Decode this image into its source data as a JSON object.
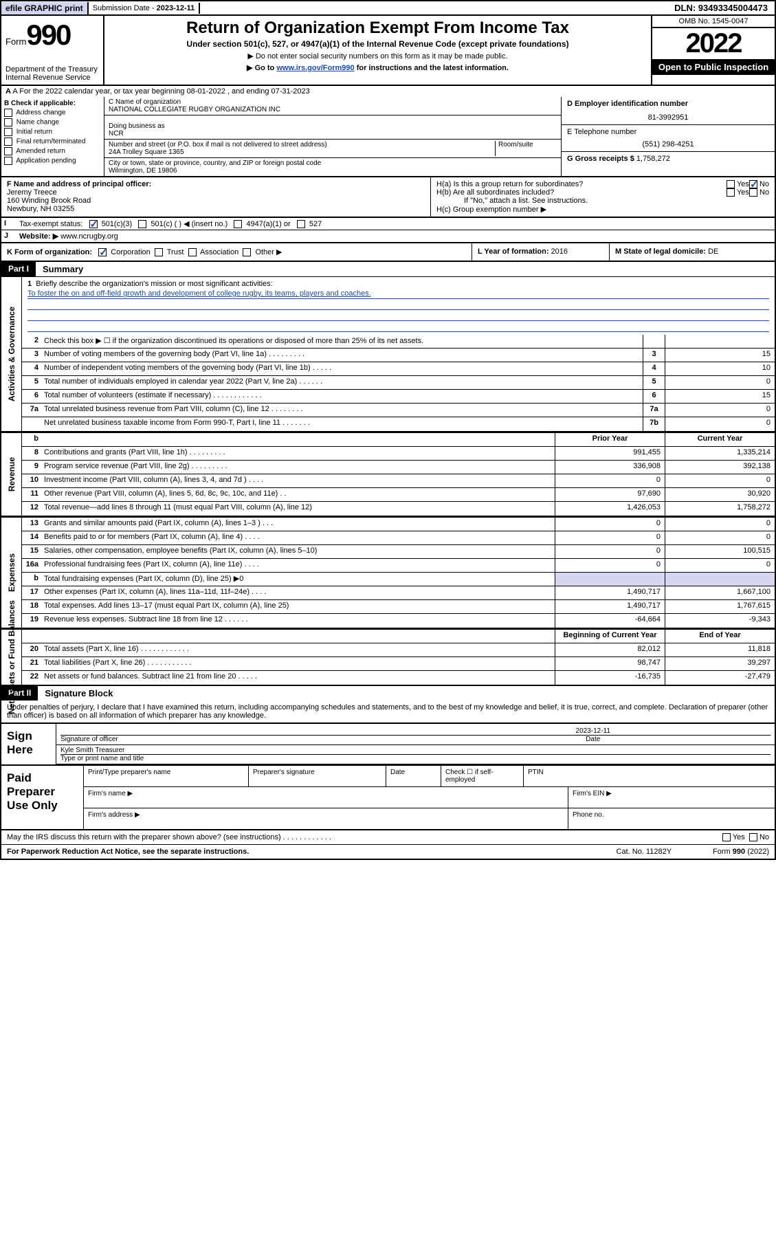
{
  "header": {
    "efile": "efile GRAPHIC print",
    "submission_label": "Submission Date - ",
    "submission_date": "2023-12-11",
    "dln": "DLN: 93493345004473"
  },
  "top": {
    "form_label": "Form",
    "form_num": "990",
    "dept": "Department of the Treasury",
    "irs": "Internal Revenue Service",
    "title": "Return of Organization Exempt From Income Tax",
    "subtitle": "Under section 501(c), 527, or 4947(a)(1) of the Internal Revenue Code (except private foundations)",
    "note1": "▶ Do not enter social security numbers on this form as it may be made public.",
    "note2_pre": "▶ Go to ",
    "note2_link": "www.irs.gov/Form990",
    "note2_post": " for instructions and the latest information.",
    "omb": "OMB No. 1545-0047",
    "year": "2022",
    "inspect": "Open to Public Inspection"
  },
  "row_a": "A For the 2022 calendar year, or tax year beginning 08-01-2022    , and ending 07-31-2023",
  "col_b": {
    "hdr": "B Check if applicable:",
    "items": [
      "Address change",
      "Name change",
      "Initial return",
      "Final return/terminated",
      "Amended return",
      "Application pending"
    ]
  },
  "col_c": {
    "name_lbl": "C Name of organization",
    "name": "NATIONAL COLLEGIATE RUGBY ORGANIZATION INC",
    "dba_lbl": "Doing business as",
    "dba": "NCR",
    "addr_lbl": "Number and street (or P.O. box if mail is not delivered to street address)",
    "room": "Room/suite",
    "addr": "24A Trolley Square 1365",
    "city_lbl": "City or town, state or province, country, and ZIP or foreign postal code",
    "city": "Wilmington, DE  19806"
  },
  "col_de": {
    "d_lbl": "D Employer identification number",
    "d_val": "81-3992951",
    "e_lbl": "E Telephone number",
    "e_val": "(551) 298-4251",
    "g_lbl": "G Gross receipts $ ",
    "g_val": "1,758,272"
  },
  "row_f": {
    "label": "F Name and address of principal officer:",
    "name": "Jeremy Treece",
    "addr1": "160 Winding Brook Road",
    "addr2": "Newbury, NH  03255"
  },
  "row_h": {
    "ha": "H(a)  Is this a group return for subordinates?",
    "hb": "H(b)  Are all subordinates included?",
    "hb_note": "If \"No,\" attach a list. See instructions.",
    "hc": "H(c)  Group exemption number ▶",
    "yes": "Yes",
    "no": "No"
  },
  "row_i": {
    "label": "Tax-exempt status:",
    "opts": [
      "501(c)(3)",
      "501(c) (  ) ◀ (insert no.)",
      "4947(a)(1) or",
      "527"
    ]
  },
  "row_j": {
    "label": "Website: ▶",
    "val": "www.ncrugby.org"
  },
  "row_k": {
    "k1": "K Form of organization:",
    "opts": [
      "Corporation",
      "Trust",
      "Association",
      "Other ▶"
    ],
    "k2_lbl": "L Year of formation: ",
    "k2_val": "2016",
    "k3_lbl": "M State of legal domicile: ",
    "k3_val": "DE"
  },
  "part1": {
    "tag": "Part I",
    "title": "Summary"
  },
  "mission": {
    "q": "Briefly describe the organization's mission or most significant activities:",
    "txt": "To foster the on and off-field growth and development of college rugby, its teams, players and coaches."
  },
  "gov_rows": [
    {
      "n": "2",
      "d": "Check this box ▶ ☐  if the organization discontinued its operations or disposed of more than 25% of its net assets.",
      "box": "",
      "v": ""
    },
    {
      "n": "3",
      "d": "Number of voting members of the governing body (Part VI, line 1a)   .    .    .    .    .    .    .    .    .",
      "box": "3",
      "v": "15"
    },
    {
      "n": "4",
      "d": "Number of independent voting members of the governing body (Part VI, line 1b)   .    .    .    .    .",
      "box": "4",
      "v": "10"
    },
    {
      "n": "5",
      "d": "Total number of individuals employed in calendar year 2022 (Part V, line 2a)   .    .    .    .    .    .",
      "box": "5",
      "v": "0"
    },
    {
      "n": "6",
      "d": "Total number of volunteers (estimate if necessary)   .    .    .    .    .    .    .    .    .    .    .    .",
      "box": "6",
      "v": "15"
    },
    {
      "n": "7a",
      "d": "Total unrelated business revenue from Part VIII, column (C), line 12   .    .    .    .    .    .    .    .",
      "box": "7a",
      "v": "0"
    },
    {
      "n": "",
      "d": "Net unrelated business taxable income from Form 990-T, Part I, line 11   .    .    .    .    .    .    .",
      "box": "7b",
      "v": "0"
    }
  ],
  "rev_hdr": {
    "prior": "Prior Year",
    "curr": "Current Year"
  },
  "rev_rows": [
    {
      "n": "8",
      "d": "Contributions and grants (Part VIII, line 1h)   .    .    .    .    .    .    .    .    .",
      "p": "991,455",
      "c": "1,335,214"
    },
    {
      "n": "9",
      "d": "Program service revenue (Part VIII, line 2g)   .    .    .    .    .    .    .    .    .",
      "p": "336,908",
      "c": "392,138"
    },
    {
      "n": "10",
      "d": "Investment income (Part VIII, column (A), lines 3, 4, and 7d )   .    .    .    .",
      "p": "0",
      "c": "0"
    },
    {
      "n": "11",
      "d": "Other revenue (Part VIII, column (A), lines 5, 6d, 8c, 9c, 10c, and 11e)   .    .",
      "p": "97,690",
      "c": "30,920"
    },
    {
      "n": "12",
      "d": "Total revenue—add lines 8 through 11 (must equal Part VIII, column (A), line 12)",
      "p": "1,426,053",
      "c": "1,758,272"
    }
  ],
  "exp_rows": [
    {
      "n": "13",
      "d": "Grants and similar amounts paid (Part IX, column (A), lines 1–3 )   .    .    .",
      "p": "0",
      "c": "0"
    },
    {
      "n": "14",
      "d": "Benefits paid to or for members (Part IX, column (A), line 4)   .    .    .    .",
      "p": "0",
      "c": "0"
    },
    {
      "n": "15",
      "d": "Salaries, other compensation, employee benefits (Part IX, column (A), lines 5–10)",
      "p": "0",
      "c": "100,515"
    },
    {
      "n": "16a",
      "d": "Professional fundraising fees (Part IX, column (A), line 11e)   .    .    .    .",
      "p": "0",
      "c": "0"
    },
    {
      "n": "b",
      "d": "Total fundraising expenses (Part IX, column (D), line 25) ▶0",
      "p": "",
      "c": "",
      "shade": true
    },
    {
      "n": "17",
      "d": "Other expenses (Part IX, column (A), lines 11a–11d, 11f–24e)   .    .    .    .",
      "p": "1,490,717",
      "c": "1,667,100"
    },
    {
      "n": "18",
      "d": "Total expenses. Add lines 13–17 (must equal Part IX, column (A), line 25)",
      "p": "1,490,717",
      "c": "1,767,615"
    },
    {
      "n": "19",
      "d": "Revenue less expenses. Subtract line 18 from line 12   .    .    .    .    .    .",
      "p": "-64,664",
      "c": "-9,343"
    }
  ],
  "na_hdr": {
    "prior": "Beginning of Current Year",
    "curr": "End of Year"
  },
  "na_rows": [
    {
      "n": "20",
      "d": "Total assets (Part X, line 16)   .    .    .    .    .    .    .    .    .    .    .    .",
      "p": "82,012",
      "c": "11,818"
    },
    {
      "n": "21",
      "d": "Total liabilities (Part X, line 26)   .    .    .    .    .    .    .    .    .    .    .",
      "p": "98,747",
      "c": "39,297"
    },
    {
      "n": "22",
      "d": "Net assets or fund balances. Subtract line 21 from line 20   .    .    .    .    .",
      "p": "-16,735",
      "c": "-27,479"
    }
  ],
  "part2": {
    "tag": "Part II",
    "title": "Signature Block"
  },
  "penalties": "Under penalties of perjury, I declare that I have examined this return, including accompanying schedules and statements, and to the best of my knowledge and belief, it is true, correct, and complete. Declaration of preparer (other than officer) is based on all information of which preparer has any knowledge.",
  "sign": {
    "here": "Sign Here",
    "sig_lbl": "Signature of officer",
    "date_lbl": "Date",
    "date": "2023-12-11",
    "name": "Kyle Smith Treasurer",
    "name_lbl": "Type or print name and title"
  },
  "paid": {
    "title": "Paid Preparer Use Only",
    "col1": "Print/Type preparer's name",
    "col2": "Preparer's signature",
    "col3": "Date",
    "col4": "Check ☐ if self-employed",
    "col5": "PTIN",
    "firm_name": "Firm's name     ▶",
    "firm_ein": "Firm's EIN ▶",
    "firm_addr": "Firm's address ▶",
    "phone": "Phone no."
  },
  "footer": {
    "discuss": "May the IRS discuss this return with the preparer shown above? (see instructions)   .    .    .    .    .    .    .    .    .    .    .    .",
    "yes": "Yes",
    "no": "No",
    "paperwork": "For Paperwork Reduction Act Notice, see the separate instructions.",
    "cat": "Cat. No. 11282Y",
    "form": "Form 990 (2022)"
  },
  "vtabs": {
    "gov": "Activities & Governance",
    "rev": "Revenue",
    "exp": "Expenses",
    "na": "Net Assets or Fund Balances"
  }
}
